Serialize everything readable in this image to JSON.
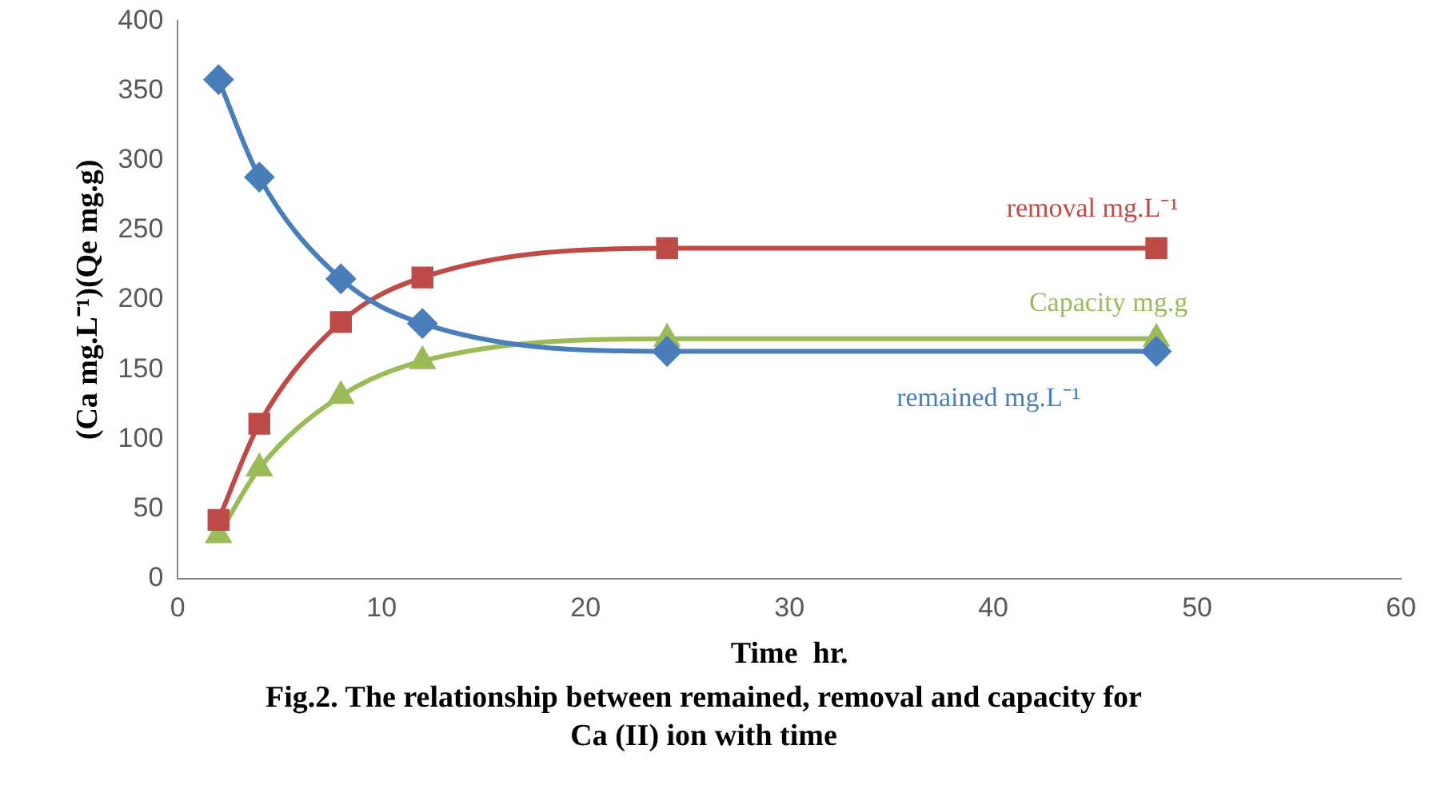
{
  "chart_data": {
    "type": "line",
    "title": "Fig.2. The relationship between remained, removal and capacity for Ca (II) ion with time",
    "xlabel": "Time  hr.",
    "ylabel": "(Ca mg.L⁻¹)(Qe mg.g)",
    "x": [
      2,
      4,
      8,
      12,
      24,
      48
    ],
    "series": [
      {
        "name": "remained mg.L⁻¹",
        "color": "#4a7ebb",
        "marker": "diamond",
        "values": [
          358,
          288,
          215,
          183,
          163,
          163
        ]
      },
      {
        "name": "removal mg.L⁻¹",
        "color": "#be4b48",
        "marker": "square",
        "values": [
          42,
          111,
          184,
          216,
          237,
          237
        ]
      },
      {
        "name": "Capacity mg.g",
        "color": "#9bbb59",
        "marker": "triangle",
        "values": [
          31,
          79,
          131,
          156,
          172,
          172
        ]
      }
    ],
    "xlim": [
      0,
      60
    ],
    "xticks": [
      0,
      10,
      20,
      30,
      40,
      50,
      60
    ],
    "ylim": [
      0,
      400
    ],
    "yticks": [
      0,
      50,
      100,
      150,
      200,
      250,
      300,
      350,
      400
    ],
    "grid": false,
    "legend": false
  }
}
